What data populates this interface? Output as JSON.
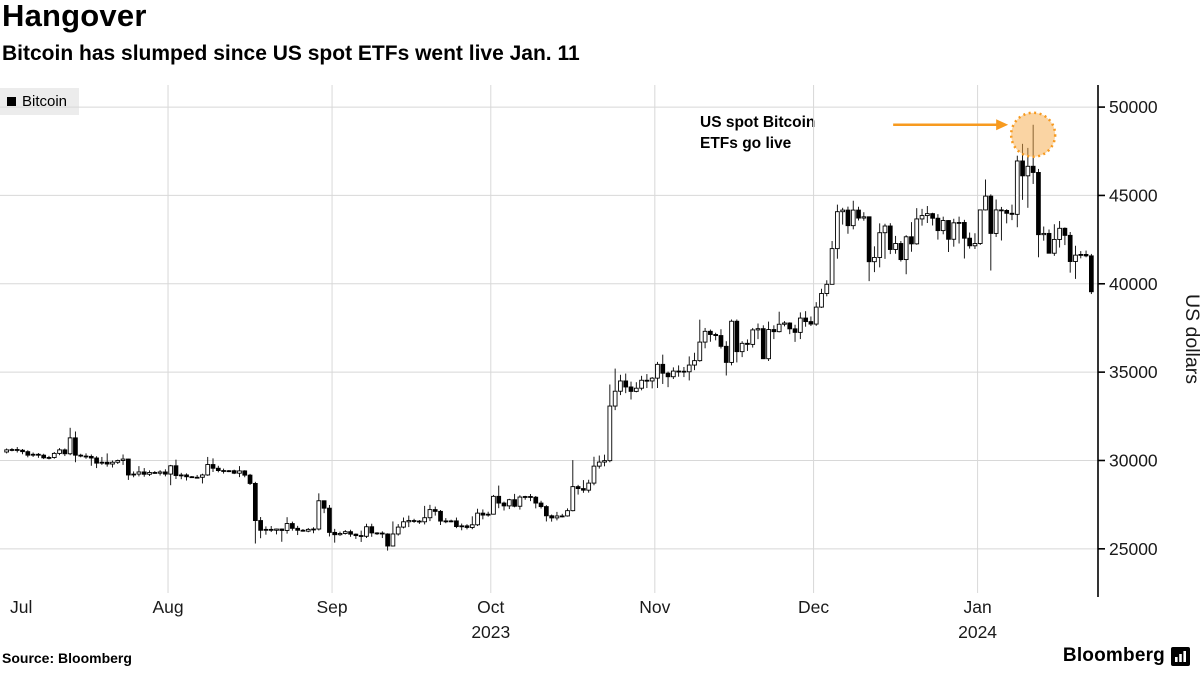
{
  "header": {
    "title": "Hangover",
    "subtitle": "Bitcoin has slumped since US spot ETFs went live Jan. 11"
  },
  "legend": {
    "label": "Bitcoin",
    "swatch_color": "#000000"
  },
  "annotation": {
    "line1": "US spot Bitcoin",
    "line2": "ETFs go live"
  },
  "y_axis": {
    "title": "US dollars",
    "ticks": [
      25000,
      30000,
      35000,
      40000,
      45000,
      50000
    ]
  },
  "x_axis": {
    "month_labels": [
      "Jul",
      "Aug",
      "Sep",
      "Oct",
      "Nov",
      "Dec",
      "Jan"
    ],
    "year_labels": [
      {
        "text": "2023",
        "month": "Oct"
      },
      {
        "text": "2024",
        "month": "Jan"
      }
    ]
  },
  "footer": {
    "source": "Source: Bloomberg",
    "logo_text": "Bloomberg"
  },
  "colors": {
    "accent_orange": "#f79a1f",
    "circle_fill": "#f5a947",
    "candle": "#000000",
    "grid": "#d8d8d8"
  },
  "chart_data": {
    "type": "candlestick",
    "title": "Hangover",
    "subtitle": "Bitcoin has slumped since US spot ETFs went live Jan. 11",
    "series_name": "Bitcoin",
    "ylabel": "US dollars",
    "ylim": [
      22500,
      51250
    ],
    "start_date": "2023-07-01",
    "interval": "daily",
    "columns": [
      "open",
      "high",
      "low",
      "close"
    ],
    "annotation": {
      "label": "US spot Bitcoin ETFs go live",
      "date": "2024-01-11",
      "value": 49000
    },
    "candles": [
      [
        30480,
        30680,
        30400,
        30600
      ],
      [
        30600,
        30700,
        30520,
        30620
      ],
      [
        30620,
        30760,
        30450,
        30580
      ],
      [
        30580,
        30650,
        30350,
        30500
      ],
      [
        30500,
        30580,
        30180,
        30300
      ],
      [
        30300,
        30450,
        30200,
        30350
      ],
      [
        30350,
        30420,
        30150,
        30300
      ],
      [
        30300,
        30380,
        30080,
        30150
      ],
      [
        30150,
        30260,
        30060,
        30170
      ],
      [
        30170,
        30480,
        30100,
        30400
      ],
      [
        30400,
        30700,
        30300,
        30600
      ],
      [
        30600,
        30680,
        30250,
        30380
      ],
      [
        30380,
        31850,
        30300,
        31280
      ],
      [
        31280,
        31640,
        29900,
        30300
      ],
      [
        30300,
        30380,
        30180,
        30250
      ],
      [
        30250,
        30400,
        30100,
        30230
      ],
      [
        30230,
        30340,
        29700,
        30140
      ],
      [
        30140,
        30240,
        29570,
        29850
      ],
      [
        29850,
        30200,
        29750,
        29900
      ],
      [
        29900,
        30400,
        29650,
        29800
      ],
      [
        29800,
        30000,
        29600,
        29900
      ],
      [
        29900,
        30050,
        29800,
        30000
      ],
      [
        30000,
        30340,
        29750,
        30080
      ],
      [
        30080,
        30100,
        28900,
        29180
      ],
      [
        29180,
        29380,
        29050,
        29230
      ],
      [
        29230,
        29680,
        29100,
        29350
      ],
      [
        29350,
        29570,
        29080,
        29220
      ],
      [
        29220,
        29440,
        29120,
        29320
      ],
      [
        29320,
        29400,
        29250,
        29280
      ],
      [
        29280,
        29450,
        29150,
        29350
      ],
      [
        29350,
        29500,
        29100,
        29230
      ],
      [
        29230,
        29750,
        28600,
        29700
      ],
      [
        29700,
        30050,
        28950,
        29150
      ],
      [
        29150,
        29300,
        28940,
        29180
      ],
      [
        29180,
        29270,
        28870,
        29080
      ],
      [
        29080,
        29120,
        29010,
        29040
      ],
      [
        29040,
        29180,
        28980,
        29050
      ],
      [
        29050,
        29250,
        28700,
        29180
      ],
      [
        29180,
        30200,
        29130,
        29770
      ],
      [
        29770,
        30120,
        29350,
        29560
      ],
      [
        29560,
        29700,
        29330,
        29430
      ],
      [
        29430,
        29540,
        29260,
        29400
      ],
      [
        29400,
        29460,
        29340,
        29420
      ],
      [
        29420,
        29480,
        29230,
        29280
      ],
      [
        29280,
        29680,
        29060,
        29410
      ],
      [
        29410,
        29450,
        29050,
        29170
      ],
      [
        29170,
        29240,
        28610,
        28700
      ],
      [
        28700,
        28790,
        25300,
        26600
      ],
      [
        26600,
        26800,
        25600,
        26050
      ],
      [
        26050,
        26270,
        25800,
        26100
      ],
      [
        26100,
        26290,
        25950,
        26050
      ],
      [
        26050,
        26140,
        25820,
        26120
      ],
      [
        26120,
        26150,
        25400,
        26040
      ],
      [
        26040,
        26790,
        25860,
        26430
      ],
      [
        26430,
        26540,
        26030,
        26160
      ],
      [
        26160,
        26300,
        25780,
        26050
      ],
      [
        26050,
        26120,
        25970,
        26000
      ],
      [
        26000,
        26180,
        25940,
        26100
      ],
      [
        26100,
        26220,
        25880,
        26120
      ],
      [
        26120,
        28140,
        26040,
        27720
      ],
      [
        27720,
        27740,
        27020,
        27300
      ],
      [
        27300,
        27480,
        25700,
        25930
      ],
      [
        25930,
        26130,
        25350,
        25800
      ],
      [
        25800,
        25970,
        25730,
        25870
      ],
      [
        25870,
        26060,
        25810,
        25970
      ],
      [
        25970,
        26080,
        25680,
        25830
      ],
      [
        25830,
        25870,
        25560,
        25750
      ],
      [
        25750,
        26030,
        25390,
        25710
      ],
      [
        25710,
        26420,
        25610,
        26250
      ],
      [
        26250,
        26420,
        25680,
        25900
      ],
      [
        25900,
        25940,
        25790,
        25890
      ],
      [
        25890,
        25990,
        25610,
        25840
      ],
      [
        25840,
        25880,
        24900,
        25160
      ],
      [
        25160,
        26550,
        25130,
        25840
      ],
      [
        25840,
        26400,
        25750,
        26230
      ],
      [
        26230,
        26770,
        26160,
        26530
      ],
      [
        26530,
        26880,
        26230,
        26600
      ],
      [
        26600,
        26700,
        26470,
        26570
      ],
      [
        26570,
        26630,
        26410,
        26530
      ],
      [
        26530,
        27430,
        26380,
        26760
      ],
      [
        26760,
        27490,
        26570,
        27220
      ],
      [
        27220,
        27390,
        26880,
        27120
      ],
      [
        27120,
        27200,
        26350,
        26570
      ],
      [
        26570,
        26740,
        26450,
        26580
      ],
      [
        26580,
        26650,
        26500,
        26580
      ],
      [
        26580,
        26770,
        26170,
        26260
      ],
      [
        26260,
        26430,
        26050,
        26300
      ],
      [
        26300,
        26390,
        26100,
        26210
      ],
      [
        26210,
        26840,
        26110,
        26360
      ],
      [
        26360,
        27270,
        26290,
        27020
      ],
      [
        27020,
        27230,
        26670,
        26910
      ],
      [
        26910,
        27100,
        26820,
        26960
      ],
      [
        26960,
        28050,
        26940,
        27970
      ],
      [
        27970,
        28580,
        27300,
        27590
      ],
      [
        27590,
        27670,
        27170,
        27430
      ],
      [
        27430,
        27830,
        27250,
        27780
      ],
      [
        27780,
        28110,
        27350,
        27410
      ],
      [
        27410,
        28030,
        27220,
        27930
      ],
      [
        27930,
        28000,
        27780,
        27960
      ],
      [
        27960,
        28100,
        27700,
        27920
      ],
      [
        27920,
        27990,
        27290,
        27590
      ],
      [
        27590,
        27720,
        27280,
        27390
      ],
      [
        27390,
        27470,
        26550,
        26870
      ],
      [
        26870,
        26940,
        26540,
        26750
      ],
      [
        26750,
        27090,
        26610,
        26860
      ],
      [
        26860,
        26980,
        26780,
        26860
      ],
      [
        26860,
        27290,
        26820,
        27160
      ],
      [
        27160,
        30020,
        27120,
        28520
      ],
      [
        28520,
        28620,
        28070,
        28410
      ],
      [
        28410,
        28890,
        28170,
        28320
      ],
      [
        28320,
        28910,
        28180,
        28720
      ],
      [
        28720,
        30210,
        28600,
        29680
      ],
      [
        29680,
        30280,
        29540,
        29910
      ],
      [
        29910,
        30330,
        29670,
        29990
      ],
      [
        29990,
        34300,
        29900,
        33080
      ],
      [
        33080,
        35200,
        32850,
        33920
      ],
      [
        33920,
        34850,
        33700,
        34500
      ],
      [
        34500,
        34920,
        33810,
        34160
      ],
      [
        34160,
        34460,
        33450,
        33910
      ],
      [
        33910,
        34430,
        33860,
        34090
      ],
      [
        34090,
        34790,
        33970,
        34540
      ],
      [
        34540,
        34890,
        34100,
        34500
      ],
      [
        34500,
        34720,
        34080,
        34660
      ],
      [
        34660,
        35580,
        34100,
        35440
      ],
      [
        35440,
        35990,
        34330,
        34940
      ],
      [
        34940,
        35030,
        34150,
        34740
      ],
      [
        34740,
        35270,
        34610,
        35060
      ],
      [
        35060,
        35380,
        34740,
        35050
      ],
      [
        35050,
        35290,
        34720,
        35020
      ],
      [
        35020,
        35890,
        34530,
        35400
      ],
      [
        35400,
        36100,
        35110,
        35650
      ],
      [
        35650,
        37970,
        35590,
        36700
      ],
      [
        36700,
        37500,
        36350,
        37310
      ],
      [
        37310,
        37410,
        36720,
        37130
      ],
      [
        37130,
        37230,
        36800,
        37070
      ],
      [
        37070,
        37430,
        36340,
        36460
      ],
      [
        36460,
        36750,
        34810,
        35550
      ],
      [
        35550,
        37980,
        35380,
        37880
      ],
      [
        37880,
        37980,
        35550,
        36160
      ],
      [
        36160,
        36750,
        35850,
        36630
      ],
      [
        36630,
        36850,
        36200,
        36570
      ],
      [
        36570,
        37500,
        36390,
        37390
      ],
      [
        37390,
        37750,
        36870,
        37460
      ],
      [
        37460,
        37650,
        35740,
        35760
      ],
      [
        35760,
        37860,
        35630,
        37410
      ],
      [
        37410,
        37650,
        36870,
        37290
      ],
      [
        37290,
        38420,
        37250,
        37710
      ],
      [
        37710,
        37890,
        37590,
        37780
      ],
      [
        37780,
        37820,
        37150,
        37450
      ],
      [
        37450,
        37680,
        36710,
        37250
      ],
      [
        37250,
        38380,
        36870,
        38060
      ],
      [
        38060,
        38450,
        37570,
        37860
      ],
      [
        37860,
        38150,
        37610,
        37720
      ],
      [
        37720,
        38960,
        37620,
        38680
      ],
      [
        38680,
        39720,
        38640,
        39450
      ],
      [
        39450,
        40200,
        39290,
        39970
      ],
      [
        39970,
        42420,
        39960,
        41990
      ],
      [
        41990,
        44480,
        41420,
        44080
      ],
      [
        44080,
        44300,
        43350,
        44170
      ],
      [
        44170,
        44370,
        42830,
        43290
      ],
      [
        43290,
        44700,
        43080,
        44170
      ],
      [
        44170,
        44360,
        43580,
        43720
      ],
      [
        43720,
        44050,
        43570,
        43790
      ],
      [
        43790,
        43810,
        40150,
        41250
      ],
      [
        41250,
        42120,
        40660,
        41490
      ],
      [
        41490,
        43420,
        40930,
        42890
      ],
      [
        42890,
        43400,
        41410,
        43270
      ],
      [
        43270,
        43430,
        41680,
        41940
      ],
      [
        41940,
        42710,
        41700,
        42280
      ],
      [
        42280,
        42420,
        41260,
        41370
      ],
      [
        41370,
        42750,
        40540,
        42660
      ],
      [
        42660,
        43490,
        41810,
        42260
      ],
      [
        42260,
        44280,
        42210,
        43670
      ],
      [
        43670,
        44240,
        43290,
        43860
      ],
      [
        43860,
        44400,
        43440,
        43970
      ],
      [
        43970,
        44020,
        43300,
        43710
      ],
      [
        43710,
        43940,
        42500,
        43010
      ],
      [
        43010,
        43800,
        42800,
        43580
      ],
      [
        43580,
        43600,
        41800,
        42520
      ],
      [
        42520,
        43680,
        42100,
        43450
      ],
      [
        43450,
        43800,
        42280,
        43470
      ],
      [
        43470,
        43620,
        41430,
        42580
      ],
      [
        42580,
        42900,
        41990,
        42150
      ],
      [
        42150,
        42860,
        41970,
        42280
      ],
      [
        42280,
        44200,
        42200,
        44180
      ],
      [
        44180,
        45900,
        44150,
        44960
      ],
      [
        44960,
        45060,
        40750,
        42850
      ],
      [
        42850,
        44770,
        42650,
        44180
      ],
      [
        44180,
        44350,
        42450,
        44150
      ],
      [
        44150,
        44220,
        43420,
        43990
      ],
      [
        43990,
        44480,
        43600,
        43930
      ],
      [
        43930,
        47250,
        43200,
        46950
      ],
      [
        46950,
        47920,
        44750,
        46110
      ],
      [
        46110,
        47690,
        44300,
        46650
      ],
      [
        46650,
        49000,
        45650,
        46300
      ],
      [
        46300,
        46500,
        41500,
        42780
      ],
      [
        42780,
        43240,
        42440,
        42850
      ],
      [
        42850,
        43070,
        41720,
        41730
      ],
      [
        41730,
        43370,
        41580,
        42510
      ],
      [
        42510,
        43550,
        42050,
        43140
      ],
      [
        43140,
        43190,
        42190,
        42740
      ],
      [
        42740,
        42930,
        40630,
        41260
      ],
      [
        41260,
        42150,
        40280,
        41620
      ],
      [
        41620,
        41850,
        41440,
        41660
      ],
      [
        41660,
        41880,
        41500,
        41580
      ],
      [
        41580,
        41690,
        39420,
        39550
      ]
    ]
  }
}
